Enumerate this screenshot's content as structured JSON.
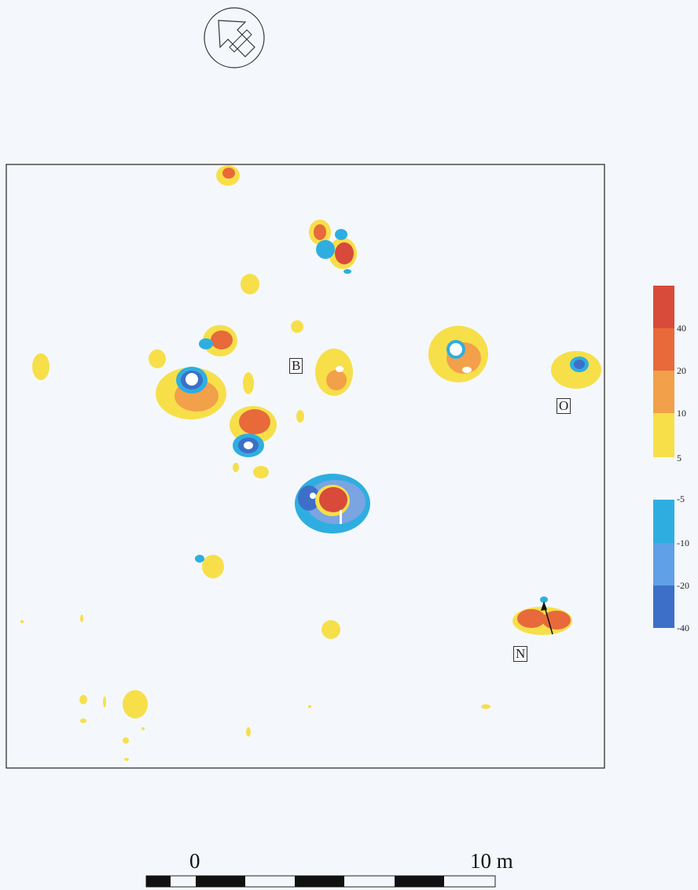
{
  "map": {
    "labels": {
      "b": "B",
      "o": "O",
      "n": "N"
    },
    "north_arrow_icon": "north-arrow-icon"
  },
  "legend": {
    "positive": {
      "ticks": [
        "40",
        "20",
        "10",
        "5"
      ],
      "colors": [
        "#d84a3a",
        "#e8693a",
        "#f2a04a",
        "#f7df4a"
      ]
    },
    "negative": {
      "ticks": [
        "-5",
        "-10",
        "-20",
        "-40"
      ],
      "colors": [
        "#2eaee0",
        "#5fa0e6",
        "#7aa4e2",
        "#3d6fc8"
      ]
    }
  },
  "scale_bar": {
    "start_label": "0",
    "end_label": "10 m"
  },
  "colors": {
    "yellow": "#f7df4a",
    "light_orange": "#f2a04a",
    "orange": "#e8693a",
    "red": "#d84a3a",
    "cyan": "#2eaee0",
    "light_blue": "#7aa4e2",
    "dark_blue": "#3d6fc8",
    "frame": "#222222"
  }
}
